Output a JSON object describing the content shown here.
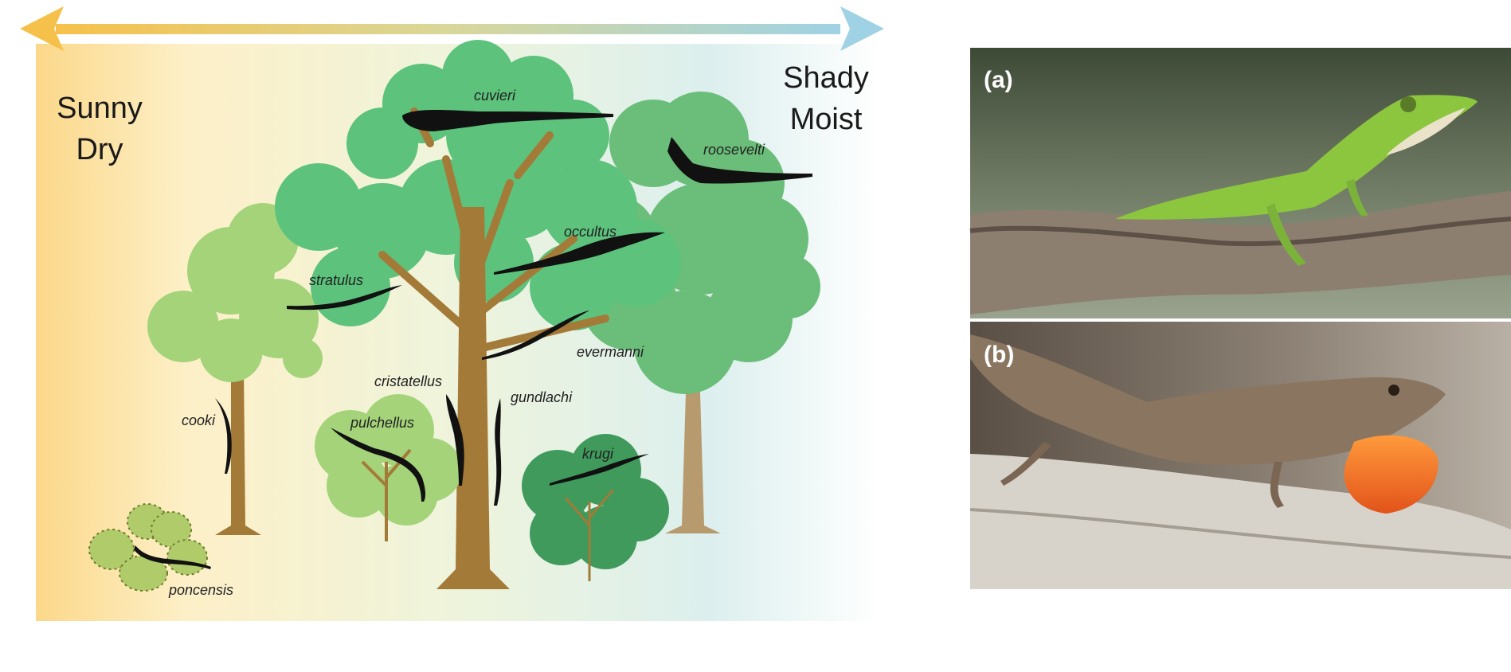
{
  "gradient": {
    "left_label_line1": "Sunny",
    "left_label_line2": "Dry",
    "right_label_line1": "Shady",
    "right_label_line2": "Moist",
    "left_color": "#f6c14b",
    "right_color": "#9fd2e4"
  },
  "species": {
    "cuvieri": "cuvieri",
    "roosevelti": "roosevelti",
    "occultus": "occultus",
    "stratulus": "stratulus",
    "evermanni": "evermanni",
    "cristatellus": "cristatellus",
    "gundlachi": "gundlachi",
    "cooki": "cooki",
    "pulchellus": "pulchellus",
    "krugi": "krugi",
    "poncensis": "poncensis"
  },
  "photos": {
    "a_label": "(a)",
    "b_label": "(b)"
  }
}
